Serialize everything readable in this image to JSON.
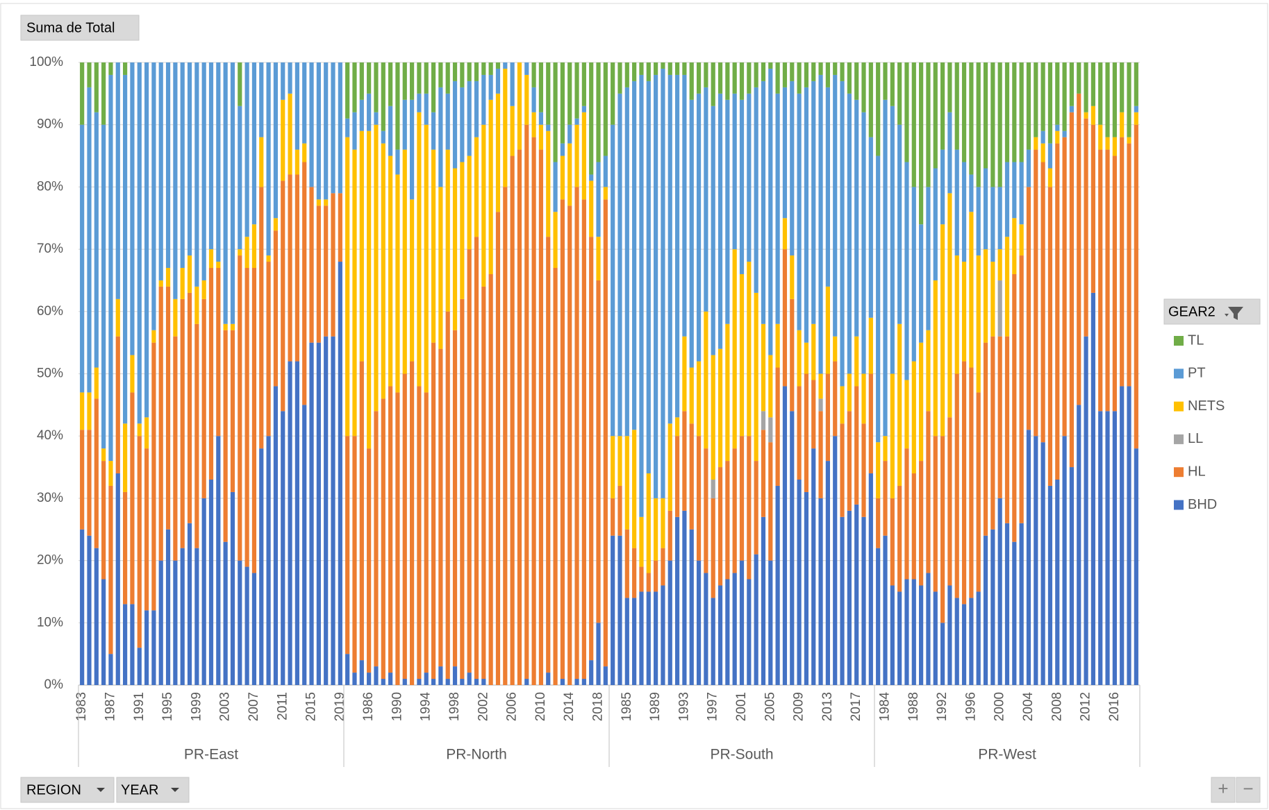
{
  "ui": {
    "value_button": "Suma de Total",
    "legend_title": "GEAR2",
    "row_buttons": [
      "REGION",
      "YEAR"
    ],
    "zoom_buttons": [
      "+",
      "−"
    ]
  },
  "chart_data": {
    "type": "stacked_bar",
    "groups": [
      {
        "name": "PR-East",
        "categories": [
          "1983",
          null,
          null,
          null,
          "1987",
          null,
          null,
          null,
          "1991",
          null,
          null,
          null,
          "1995",
          null,
          null,
          null,
          "1999",
          null,
          null,
          null,
          "2003",
          null,
          null,
          null,
          "2007",
          null,
          null,
          null,
          "2011",
          null,
          null,
          null,
          "2015",
          null,
          null,
          null,
          "2019"
        ]
      },
      {
        "name": "PR-North",
        "categories": [
          null,
          null,
          null,
          "1986",
          null,
          null,
          null,
          "1990",
          null,
          null,
          null,
          "1994",
          null,
          null,
          null,
          "1998",
          null,
          null,
          null,
          "2002",
          null,
          null,
          null,
          "2006",
          null,
          null,
          null,
          "2010",
          null,
          null,
          null,
          "2014",
          null,
          null,
          null,
          "2018",
          null
        ]
      },
      {
        "name": "PR-South",
        "categories": [
          null,
          null,
          "1985",
          null,
          null,
          null,
          "1989",
          null,
          null,
          null,
          "1993",
          null,
          null,
          null,
          "1997",
          null,
          null,
          null,
          "2001",
          null,
          null,
          null,
          "2005",
          null,
          null,
          null,
          "2009",
          null,
          null,
          null,
          "2013",
          null,
          null,
          null,
          "2017",
          null,
          null
        ]
      },
      {
        "name": "PR-West",
        "categories": [
          null,
          "1984",
          null,
          null,
          null,
          "1988",
          null,
          null,
          null,
          "1992",
          null,
          null,
          null,
          "1996",
          null,
          null,
          null,
          "2000",
          null,
          null,
          null,
          "2004",
          null,
          null,
          null,
          "2008",
          null,
          null,
          null,
          "2012",
          null,
          null,
          null,
          "2016",
          null,
          null,
          null
        ]
      }
    ],
    "series": [
      {
        "name": "BHD",
        "color": "#4472c4",
        "values": [
          25,
          24,
          22,
          17,
          5,
          34,
          13,
          13,
          6,
          12,
          12,
          20,
          25,
          20,
          22,
          26,
          22,
          30,
          33,
          40,
          23,
          31,
          20,
          19,
          18,
          38,
          40,
          48,
          44,
          52,
          52,
          45,
          55,
          55,
          56,
          56,
          68,
          5,
          2,
          4,
          2,
          3,
          1,
          2,
          0,
          1,
          0,
          1,
          2,
          1,
          3,
          1,
          3,
          1,
          2,
          1,
          1,
          0,
          0,
          0,
          0,
          0,
          1,
          0,
          0,
          2,
          0,
          1,
          0,
          1,
          1,
          4,
          10,
          3,
          24,
          24,
          14,
          14,
          15,
          15,
          15,
          16,
          20,
          27,
          28,
          25,
          20,
          18,
          14,
          16,
          17,
          18,
          20,
          17,
          21,
          27,
          20,
          32,
          48,
          44,
          33,
          31,
          38,
          30,
          36,
          40,
          27,
          28,
          29,
          27,
          34,
          22,
          24,
          16,
          15,
          17,
          17,
          16,
          18,
          15,
          10,
          16,
          14,
          13,
          14,
          15,
          24,
          25,
          30,
          26,
          23,
          26,
          41,
          40,
          39,
          32,
          33,
          40,
          35,
          45,
          56,
          63,
          44,
          44,
          44,
          48,
          48,
          38
        ]
      },
      {
        "name": "HL",
        "color": "#ed7d31",
        "values": [
          16,
          17,
          24,
          19,
          27,
          22,
          18,
          34,
          34,
          26,
          43,
          44,
          39,
          36,
          40,
          37,
          36,
          32,
          34,
          27,
          34,
          26,
          49,
          48,
          49,
          42,
          28,
          25,
          37,
          30,
          30,
          39,
          25,
          22,
          21,
          23,
          11,
          35,
          38,
          48,
          36,
          41,
          45,
          46,
          47,
          49,
          52,
          47,
          45,
          54,
          51,
          59,
          54,
          61,
          68,
          71,
          63,
          66,
          76,
          80,
          85,
          86,
          89,
          88,
          86,
          70,
          67,
          77,
          77,
          79,
          77,
          68,
          55,
          75,
          6,
          8,
          11,
          8,
          4,
          3,
          5,
          6,
          8,
          13,
          16,
          17,
          20,
          20,
          16,
          19,
          19,
          20,
          20,
          23,
          15,
          14,
          19,
          19,
          22,
          18,
          15,
          19,
          11,
          14,
          14,
          12,
          15,
          16,
          19,
          15,
          16,
          8,
          12,
          14,
          17,
          21,
          17,
          20,
          26,
          25,
          30,
          27,
          36,
          39,
          37,
          32,
          31,
          31,
          26,
          30,
          43,
          43,
          39,
          46,
          45,
          48,
          54,
          48,
          57,
          50,
          35,
          27,
          42,
          42,
          41,
          40,
          39,
          52
        ]
      },
      {
        "name": "LL",
        "color": "#a5a5a5",
        "values": [
          0,
          0,
          0,
          0,
          0,
          0,
          0,
          0,
          0,
          0,
          0,
          0,
          0,
          0,
          0,
          0,
          0,
          0,
          0,
          0,
          0,
          0,
          0,
          0,
          0,
          0,
          0,
          0,
          0,
          0,
          0,
          0,
          0,
          0,
          0,
          0,
          0,
          0,
          0,
          0,
          0,
          0,
          0,
          0,
          0,
          0,
          0,
          0,
          0,
          0,
          0,
          0,
          0,
          0,
          0,
          0,
          0,
          0,
          0,
          0,
          0,
          0,
          0,
          0,
          0,
          0,
          0,
          0,
          0,
          0,
          0,
          0,
          0,
          0,
          0,
          0,
          0,
          0,
          0,
          0,
          0,
          0,
          0,
          0,
          0,
          0,
          0,
          0,
          3,
          0,
          0,
          0,
          0,
          0,
          0,
          3,
          4,
          0,
          0,
          0,
          0,
          0,
          0,
          2,
          0,
          0,
          0,
          0,
          0,
          0,
          0,
          0,
          0,
          0,
          0,
          0,
          0,
          0,
          0,
          0,
          0,
          0,
          0,
          0,
          0,
          0,
          0,
          0,
          9,
          0,
          0,
          0,
          0,
          0,
          0,
          0,
          0,
          0,
          0,
          0,
          0,
          0,
          0,
          0,
          0,
          0,
          0,
          0
        ]
      },
      {
        "name": "NETS",
        "color": "#ffc000",
        "values": [
          6,
          6,
          5,
          2,
          4,
          6,
          11,
          6,
          2,
          5,
          2,
          1,
          3,
          6,
          5,
          6,
          6,
          3,
          3,
          1,
          1,
          1,
          1,
          5,
          7,
          8,
          1,
          2,
          13,
          13,
          4,
          3,
          0,
          1,
          1,
          0,
          0,
          48,
          46,
          37,
          51,
          46,
          41,
          37,
          35,
          36,
          26,
          44,
          43,
          31,
          26,
          26,
          26,
          22,
          15,
          16,
          26,
          28,
          19,
          19,
          8,
          14,
          8,
          4,
          4,
          17,
          9,
          7,
          10,
          10,
          14,
          9,
          7,
          2,
          10,
          8,
          15,
          19,
          8,
          16,
          10,
          8,
          14,
          3,
          12,
          9,
          12,
          22,
          20,
          19,
          22,
          32,
          26,
          28,
          27,
          14,
          10,
          7,
          5,
          7,
          9,
          5,
          9,
          4,
          14,
          4,
          6,
          6,
          8,
          8,
          9,
          9,
          4,
          20,
          26,
          11,
          18,
          19,
          13,
          25,
          34,
          36,
          19,
          16,
          25,
          22,
          15,
          12,
          5,
          16,
          9,
          5,
          0,
          2,
          3,
          3,
          2,
          0,
          0,
          0,
          1,
          3,
          4,
          2,
          3,
          4,
          1,
          2
        ]
      },
      {
        "name": "PT",
        "color": "#5b9bd5",
        "values": [
          43,
          49,
          41,
          52,
          62,
          38,
          56,
          47,
          58,
          57,
          43,
          35,
          33,
          38,
          33,
          31,
          36,
          35,
          30,
          32,
          42,
          42,
          23,
          28,
          26,
          12,
          31,
          25,
          6,
          5,
          14,
          13,
          20,
          22,
          22,
          21,
          21,
          3,
          6,
          5,
          6,
          2,
          2,
          8,
          4,
          8,
          16,
          3,
          5,
          6,
          16,
          9,
          14,
          12,
          12,
          9,
          8,
          4,
          4,
          1,
          7,
          0,
          2,
          4,
          2,
          1,
          8,
          2,
          3,
          1,
          1,
          1,
          12,
          5,
          50,
          55,
          56,
          56,
          71,
          63,
          68,
          69,
          56,
          55,
          42,
          43,
          43,
          36,
          40,
          41,
          36,
          25,
          28,
          27,
          33,
          39,
          46,
          37,
          21,
          28,
          38,
          41,
          39,
          48,
          32,
          42,
          49,
          45,
          38,
          42,
          29,
          46,
          54,
          43,
          32,
          35,
          28,
          19,
          23,
          18,
          12,
          13,
          17,
          16,
          6,
          11,
          13,
          12,
          10,
          12,
          9,
          10,
          6,
          0,
          2,
          4,
          1,
          1,
          1,
          0,
          0,
          0,
          0,
          0,
          0,
          0,
          0,
          1
        ]
      },
      {
        "name": "TL",
        "color": "#70ad47",
        "values": [
          10,
          4,
          8,
          10,
          2,
          0,
          2,
          0,
          0,
          0,
          0,
          0,
          0,
          0,
          0,
          0,
          0,
          0,
          0,
          0,
          0,
          0,
          7,
          0,
          0,
          0,
          0,
          0,
          0,
          0,
          0,
          0,
          0,
          0,
          0,
          0,
          0,
          9,
          8,
          6,
          5,
          8,
          11,
          7,
          14,
          6,
          6,
          5,
          5,
          8,
          4,
          5,
          3,
          4,
          3,
          3,
          2,
          2,
          1,
          0,
          0,
          0,
          0,
          4,
          8,
          10,
          16,
          13,
          10,
          9,
          7,
          18,
          16,
          15,
          10,
          5,
          4,
          3,
          2,
          3,
          2,
          1,
          2,
          2,
          2,
          6,
          5,
          4,
          7,
          5,
          6,
          5,
          6,
          5,
          4,
          3,
          1,
          5,
          4,
          3,
          5,
          4,
          3,
          2,
          4,
          2,
          3,
          5,
          6,
          8,
          12,
          15,
          6,
          7,
          10,
          16,
          20,
          26,
          20,
          17,
          14,
          8,
          14,
          16,
          18,
          20,
          17,
          20,
          20,
          16,
          16,
          16,
          14,
          12,
          11,
          13,
          10,
          11,
          7,
          5,
          8,
          7,
          10,
          12,
          12,
          8,
          12,
          7
        ]
      }
    ],
    "ylim": [
      0,
      100
    ],
    "yticks": [
      {
        "value": 0,
        "label": "0%"
      },
      {
        "value": 10,
        "label": "10%"
      },
      {
        "value": 20,
        "label": "20%"
      },
      {
        "value": 30,
        "label": "30%"
      },
      {
        "value": 40,
        "label": "40%"
      },
      {
        "value": 50,
        "label": "50%"
      },
      {
        "value": 60,
        "label": "60%"
      },
      {
        "value": 70,
        "label": "70%"
      },
      {
        "value": 80,
        "label": "80%"
      },
      {
        "value": 90,
        "label": "90%"
      },
      {
        "value": 100,
        "label": "100%"
      }
    ],
    "grid": true,
    "legend": "right"
  }
}
